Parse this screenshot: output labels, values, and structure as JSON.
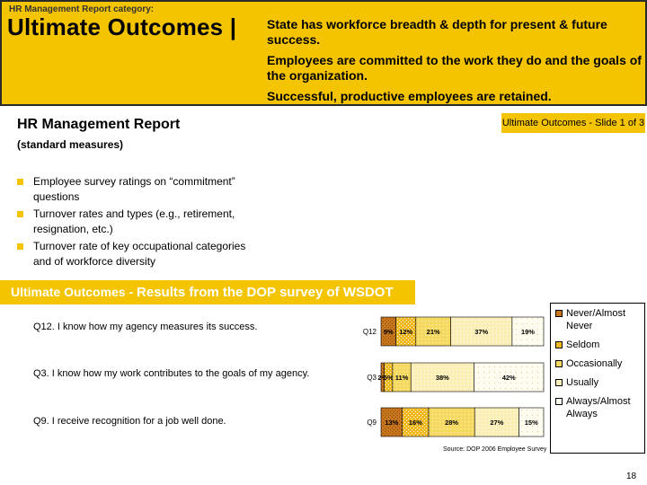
{
  "banner": {
    "category": "HR Management Report category:",
    "title": "Ultimate Outcomes |",
    "statements": [
      "State has workforce breadth & depth for present & future success.",
      "Employees are committed to the work they do and the goals of the organization.",
      "Successful, productive employees are retained."
    ]
  },
  "report": {
    "title": "HR Management Report",
    "subtitle": "(standard measures)",
    "slide_badge": "Ultimate Outcomes - Slide 1 of 3",
    "bullets": [
      "Employee survey ratings on “commitment” questions",
      "Turnover rates and types (e.g., retirement, resignation, etc.)",
      "Turnover rate of key occupational categories and of workforce diversity"
    ]
  },
  "section_band": {
    "part1": "Ultimate Outcomes - ",
    "part2": "Results from the DOP survey of WSDOT"
  },
  "questions": [
    "Q12. I know how my agency measures its success.",
    "Q3. I know how my work contributes to the goals of my agency.",
    "Q9. I receive recognition for a job well done."
  ],
  "colors": {
    "accent": "#f5c400",
    "never": "#c8761c",
    "seldom": "#f0b81a",
    "occasionally": "#f5d960",
    "usually": "#fbeeb6",
    "always": "#fffcf0"
  },
  "chart_data": {
    "type": "bar",
    "orientation": "horizontal",
    "stacked": true,
    "percent": true,
    "categories": [
      "Q12",
      "Q3",
      "Q9"
    ],
    "series": [
      {
        "name": "Never/Almost Never",
        "values": [
          9,
          2,
          13
        ],
        "labels": [
          "9%",
          "2%",
          "13%"
        ]
      },
      {
        "name": "Seldom",
        "values": [
          12,
          5,
          16
        ],
        "labels": [
          "12%",
          "5%",
          "16%"
        ]
      },
      {
        "name": "Occasionally",
        "values": [
          21,
          11,
          28
        ],
        "labels": [
          "21%",
          "11%",
          "28%"
        ]
      },
      {
        "name": "Usually",
        "values": [
          37,
          38,
          27
        ],
        "labels": [
          "37%",
          "38%",
          "27%"
        ]
      },
      {
        "name": "Always/Almost Always",
        "values": [
          19,
          42,
          15
        ],
        "labels": [
          "19%",
          "42%",
          "15%"
        ]
      }
    ],
    "legend_position": "right",
    "source": "Source: DOP 2006 Employee Survey"
  },
  "page_number": "18"
}
